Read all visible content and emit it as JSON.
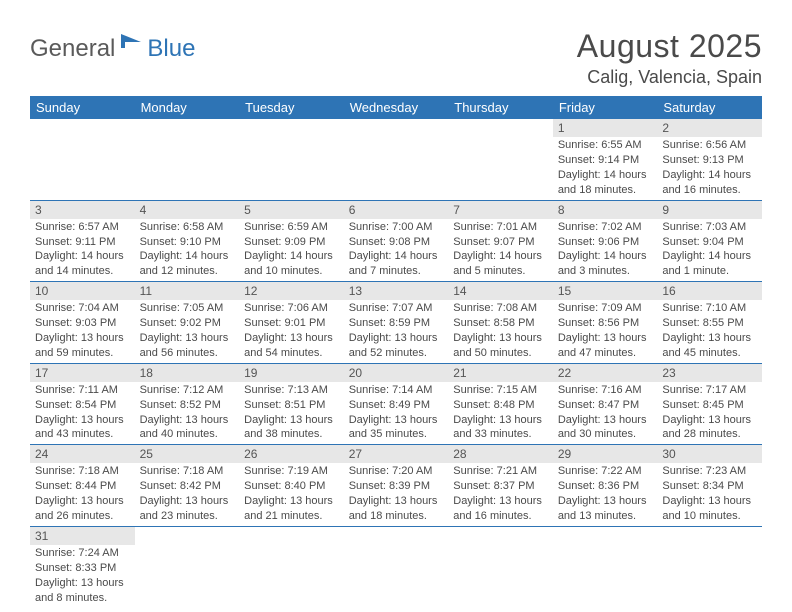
{
  "logo": {
    "part1": "General",
    "part2": "Blue"
  },
  "title": "August 2025",
  "location": "Calig, Valencia, Spain",
  "colors": {
    "header_bg": "#2e74b5",
    "header_text": "#ffffff",
    "daynum_bg": "#e7e7e7",
    "text": "#4a4a4a",
    "row_border": "#2e74b5"
  },
  "weekdays": [
    "Sunday",
    "Monday",
    "Tuesday",
    "Wednesday",
    "Thursday",
    "Friday",
    "Saturday"
  ],
  "weeks": [
    [
      null,
      null,
      null,
      null,
      null,
      {
        "n": "1",
        "sunrise": "Sunrise: 6:55 AM",
        "sunset": "Sunset: 9:14 PM",
        "daylight1": "Daylight: 14 hours",
        "daylight2": "and 18 minutes."
      },
      {
        "n": "2",
        "sunrise": "Sunrise: 6:56 AM",
        "sunset": "Sunset: 9:13 PM",
        "daylight1": "Daylight: 14 hours",
        "daylight2": "and 16 minutes."
      }
    ],
    [
      {
        "n": "3",
        "sunrise": "Sunrise: 6:57 AM",
        "sunset": "Sunset: 9:11 PM",
        "daylight1": "Daylight: 14 hours",
        "daylight2": "and 14 minutes."
      },
      {
        "n": "4",
        "sunrise": "Sunrise: 6:58 AM",
        "sunset": "Sunset: 9:10 PM",
        "daylight1": "Daylight: 14 hours",
        "daylight2": "and 12 minutes."
      },
      {
        "n": "5",
        "sunrise": "Sunrise: 6:59 AM",
        "sunset": "Sunset: 9:09 PM",
        "daylight1": "Daylight: 14 hours",
        "daylight2": "and 10 minutes."
      },
      {
        "n": "6",
        "sunrise": "Sunrise: 7:00 AM",
        "sunset": "Sunset: 9:08 PM",
        "daylight1": "Daylight: 14 hours",
        "daylight2": "and 7 minutes."
      },
      {
        "n": "7",
        "sunrise": "Sunrise: 7:01 AM",
        "sunset": "Sunset: 9:07 PM",
        "daylight1": "Daylight: 14 hours",
        "daylight2": "and 5 minutes."
      },
      {
        "n": "8",
        "sunrise": "Sunrise: 7:02 AM",
        "sunset": "Sunset: 9:06 PM",
        "daylight1": "Daylight: 14 hours",
        "daylight2": "and 3 minutes."
      },
      {
        "n": "9",
        "sunrise": "Sunrise: 7:03 AM",
        "sunset": "Sunset: 9:04 PM",
        "daylight1": "Daylight: 14 hours",
        "daylight2": "and 1 minute."
      }
    ],
    [
      {
        "n": "10",
        "sunrise": "Sunrise: 7:04 AM",
        "sunset": "Sunset: 9:03 PM",
        "daylight1": "Daylight: 13 hours",
        "daylight2": "and 59 minutes."
      },
      {
        "n": "11",
        "sunrise": "Sunrise: 7:05 AM",
        "sunset": "Sunset: 9:02 PM",
        "daylight1": "Daylight: 13 hours",
        "daylight2": "and 56 minutes."
      },
      {
        "n": "12",
        "sunrise": "Sunrise: 7:06 AM",
        "sunset": "Sunset: 9:01 PM",
        "daylight1": "Daylight: 13 hours",
        "daylight2": "and 54 minutes."
      },
      {
        "n": "13",
        "sunrise": "Sunrise: 7:07 AM",
        "sunset": "Sunset: 8:59 PM",
        "daylight1": "Daylight: 13 hours",
        "daylight2": "and 52 minutes."
      },
      {
        "n": "14",
        "sunrise": "Sunrise: 7:08 AM",
        "sunset": "Sunset: 8:58 PM",
        "daylight1": "Daylight: 13 hours",
        "daylight2": "and 50 minutes."
      },
      {
        "n": "15",
        "sunrise": "Sunrise: 7:09 AM",
        "sunset": "Sunset: 8:56 PM",
        "daylight1": "Daylight: 13 hours",
        "daylight2": "and 47 minutes."
      },
      {
        "n": "16",
        "sunrise": "Sunrise: 7:10 AM",
        "sunset": "Sunset: 8:55 PM",
        "daylight1": "Daylight: 13 hours",
        "daylight2": "and 45 minutes."
      }
    ],
    [
      {
        "n": "17",
        "sunrise": "Sunrise: 7:11 AM",
        "sunset": "Sunset: 8:54 PM",
        "daylight1": "Daylight: 13 hours",
        "daylight2": "and 43 minutes."
      },
      {
        "n": "18",
        "sunrise": "Sunrise: 7:12 AM",
        "sunset": "Sunset: 8:52 PM",
        "daylight1": "Daylight: 13 hours",
        "daylight2": "and 40 minutes."
      },
      {
        "n": "19",
        "sunrise": "Sunrise: 7:13 AM",
        "sunset": "Sunset: 8:51 PM",
        "daylight1": "Daylight: 13 hours",
        "daylight2": "and 38 minutes."
      },
      {
        "n": "20",
        "sunrise": "Sunrise: 7:14 AM",
        "sunset": "Sunset: 8:49 PM",
        "daylight1": "Daylight: 13 hours",
        "daylight2": "and 35 minutes."
      },
      {
        "n": "21",
        "sunrise": "Sunrise: 7:15 AM",
        "sunset": "Sunset: 8:48 PM",
        "daylight1": "Daylight: 13 hours",
        "daylight2": "and 33 minutes."
      },
      {
        "n": "22",
        "sunrise": "Sunrise: 7:16 AM",
        "sunset": "Sunset: 8:47 PM",
        "daylight1": "Daylight: 13 hours",
        "daylight2": "and 30 minutes."
      },
      {
        "n": "23",
        "sunrise": "Sunrise: 7:17 AM",
        "sunset": "Sunset: 8:45 PM",
        "daylight1": "Daylight: 13 hours",
        "daylight2": "and 28 minutes."
      }
    ],
    [
      {
        "n": "24",
        "sunrise": "Sunrise: 7:18 AM",
        "sunset": "Sunset: 8:44 PM",
        "daylight1": "Daylight: 13 hours",
        "daylight2": "and 26 minutes."
      },
      {
        "n": "25",
        "sunrise": "Sunrise: 7:18 AM",
        "sunset": "Sunset: 8:42 PM",
        "daylight1": "Daylight: 13 hours",
        "daylight2": "and 23 minutes."
      },
      {
        "n": "26",
        "sunrise": "Sunrise: 7:19 AM",
        "sunset": "Sunset: 8:40 PM",
        "daylight1": "Daylight: 13 hours",
        "daylight2": "and 21 minutes."
      },
      {
        "n": "27",
        "sunrise": "Sunrise: 7:20 AM",
        "sunset": "Sunset: 8:39 PM",
        "daylight1": "Daylight: 13 hours",
        "daylight2": "and 18 minutes."
      },
      {
        "n": "28",
        "sunrise": "Sunrise: 7:21 AM",
        "sunset": "Sunset: 8:37 PM",
        "daylight1": "Daylight: 13 hours",
        "daylight2": "and 16 minutes."
      },
      {
        "n": "29",
        "sunrise": "Sunrise: 7:22 AM",
        "sunset": "Sunset: 8:36 PM",
        "daylight1": "Daylight: 13 hours",
        "daylight2": "and 13 minutes."
      },
      {
        "n": "30",
        "sunrise": "Sunrise: 7:23 AM",
        "sunset": "Sunset: 8:34 PM",
        "daylight1": "Daylight: 13 hours",
        "daylight2": "and 10 minutes."
      }
    ],
    [
      {
        "n": "31",
        "sunrise": "Sunrise: 7:24 AM",
        "sunset": "Sunset: 8:33 PM",
        "daylight1": "Daylight: 13 hours",
        "daylight2": "and 8 minutes."
      },
      null,
      null,
      null,
      null,
      null,
      null
    ]
  ]
}
